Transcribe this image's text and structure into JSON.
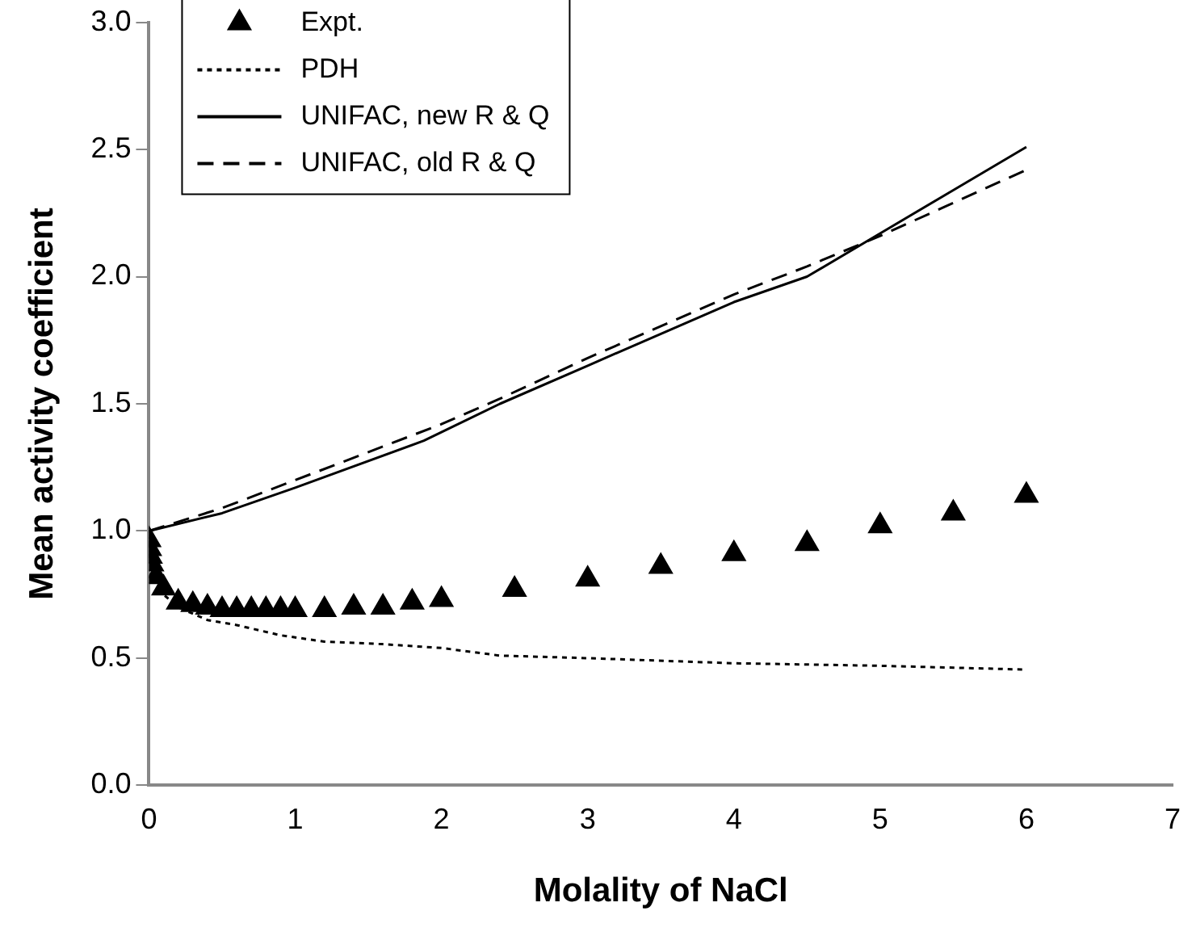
{
  "chart_data": {
    "type": "scatter",
    "xlabel": "Molality of NaCl",
    "ylabel": "Mean activity coefficient",
    "xlim": [
      0,
      7
    ],
    "xticks": [
      0,
      1,
      2,
      3,
      4,
      5,
      6,
      7
    ],
    "ylim": [
      0,
      3
    ],
    "yticks": [
      {
        "value": 0,
        "label": "0.0"
      },
      {
        "value": 0.5,
        "label": "0.5"
      },
      {
        "value": 1,
        "label": "1.0"
      },
      {
        "value": 1.5,
        "label": "1.5"
      },
      {
        "value": 2,
        "label": "2.0"
      },
      {
        "value": 2.5,
        "label": "2.5"
      },
      {
        "value": 3,
        "label": "3.0"
      }
    ],
    "grid": false,
    "legend": "top left",
    "series": [
      {
        "name": "Expt.",
        "type": "scatter",
        "marker": "triangle",
        "color": "#000000",
        "x": [
          0.001,
          0.005,
          0.01,
          0.02,
          0.05,
          0.1,
          0.2,
          0.3,
          0.4,
          0.5,
          0.6,
          0.7,
          0.8,
          0.9,
          1.0,
          1.2,
          1.4,
          1.6,
          1.8,
          2.0,
          2.5,
          3.0,
          3.5,
          4.0,
          4.5,
          5.0,
          5.5,
          6.0
        ],
        "values": [
          0.965,
          0.93,
          0.9,
          0.87,
          0.82,
          0.775,
          0.72,
          0.71,
          0.7,
          0.69,
          0.69,
          0.69,
          0.69,
          0.69,
          0.69,
          0.69,
          0.7,
          0.7,
          0.72,
          0.73,
          0.77,
          0.81,
          0.86,
          0.91,
          0.95,
          1.02,
          1.07,
          1.14
        ]
      },
      {
        "name": "PDH",
        "type": "line",
        "line_style": "dotted",
        "marker": "none",
        "color": "#000000",
        "x": [
          0,
          0.01,
          0.05,
          0.1,
          0.2,
          0.4,
          0.6,
          0.9,
          1.2,
          1.6,
          2.0,
          2.4,
          3.0,
          4.0,
          5.0,
          6.0
        ],
        "values": [
          1.0,
          0.9,
          0.8,
          0.75,
          0.7,
          0.65,
          0.63,
          0.59,
          0.565,
          0.555,
          0.54,
          0.51,
          0.5,
          0.48,
          0.47,
          0.455
        ]
      },
      {
        "name": "UNIFAC, new R & Q",
        "type": "line",
        "line_style": "solid",
        "marker": "none",
        "color": "#000000",
        "x": [
          0,
          0.5,
          1,
          1.88,
          2.4,
          3,
          4,
          4.5,
          5,
          5.5,
          6
        ],
        "values": [
          1.0,
          1.07,
          1.17,
          1.355,
          1.5,
          1.65,
          1.9,
          2.0,
          2.17,
          2.34,
          2.51
        ]
      },
      {
        "name": "UNIFAC, old R & Q",
        "type": "line",
        "line_style": "dashed",
        "marker": "none",
        "color": "#000000",
        "x": [
          0,
          0.5,
          1,
          2,
          2.4,
          3,
          4,
          4.5,
          5,
          5.5,
          6
        ],
        "values": [
          1.0,
          1.09,
          1.2,
          1.42,
          1.52,
          1.68,
          1.93,
          2.04,
          2.16,
          2.29,
          2.42
        ]
      }
    ]
  }
}
